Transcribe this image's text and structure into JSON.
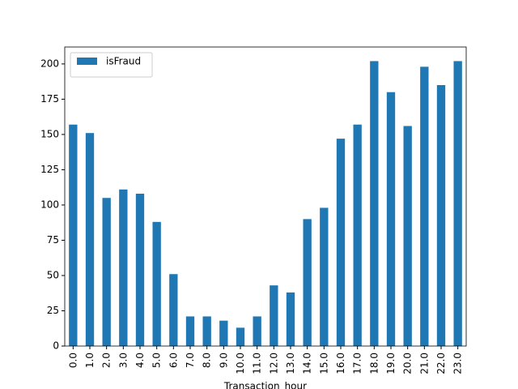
{
  "chart_data": {
    "type": "bar",
    "x_label": "Transaction_hour",
    "categories": [
      "0.0",
      "1.0",
      "2.0",
      "3.0",
      "4.0",
      "5.0",
      "6.0",
      "7.0",
      "8.0",
      "9.0",
      "10.0",
      "11.0",
      "12.0",
      "13.0",
      "14.0",
      "15.0",
      "16.0",
      "17.0",
      "18.0",
      "19.0",
      "20.0",
      "21.0",
      "22.0",
      "23.0"
    ],
    "series": [
      {
        "name": "isFraud",
        "color": "#1f77b4",
        "values": [
          157,
          151,
          105,
          111,
          108,
          88,
          51,
          21,
          21,
          18,
          13,
          21,
          43,
          38,
          90,
          98,
          147,
          157,
          202,
          180,
          156,
          198,
          185,
          202
        ]
      }
    ],
    "ylim": [
      0,
      212
    ],
    "yticks": [
      0,
      25,
      50,
      75,
      100,
      125,
      150,
      175,
      200
    ],
    "grid": false,
    "legend": "upper left"
  }
}
